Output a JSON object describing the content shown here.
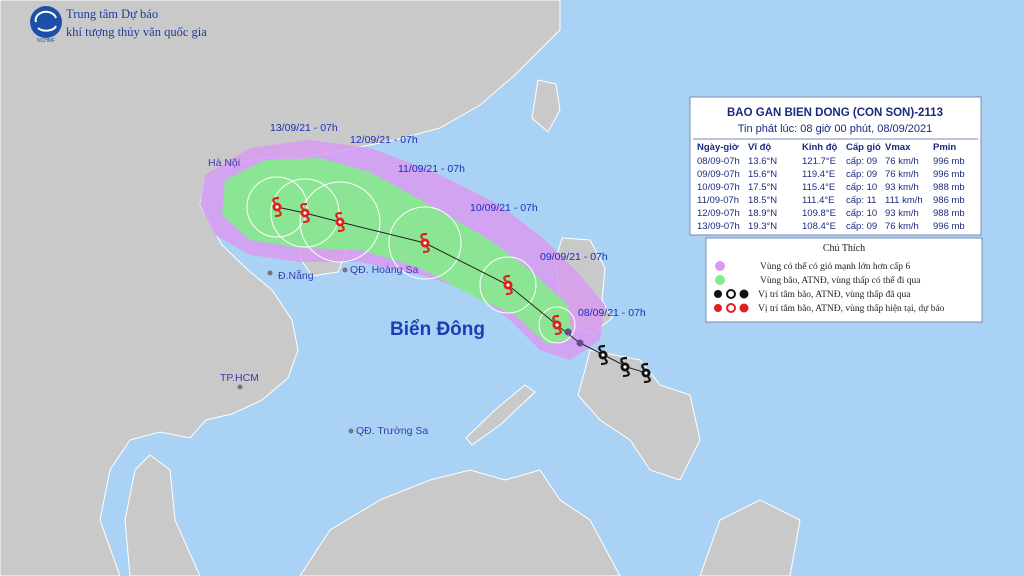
{
  "header": {
    "org_line1": "Trung tâm Dự báo",
    "org_line2": "khí tượng thủy văn quốc gia",
    "logo_text": "NCHMF"
  },
  "map_labels": {
    "track_times": [
      "13/09/21 - 07h",
      "12/09/21 - 07h",
      "11/09/21 - 07h",
      "10/09/21 - 07h",
      "09/09/21 - 07h",
      "08/09/21 - 07h"
    ],
    "places": [
      "Hà Nội",
      "Đ.Nẵng",
      "QĐ. Hoàng Sa",
      "Biển Đông",
      "TP.HCM",
      "QĐ. Trường Sa"
    ]
  },
  "bulletin": {
    "title": "BAO GAN BIEN DONG (CON SON)-2113",
    "issued": "Tin phát lúc: 08 giờ 00 phút, 08/09/2021",
    "columns": [
      "Ngày-giờ",
      "Vĩ độ",
      "Kinh độ",
      "Cấp gió",
      "Vmax",
      "Pmin"
    ],
    "rows": [
      [
        "08/09-07h",
        "13.6°N",
        "121.7°E",
        "cấp: 09",
        "76 km/h",
        "996 mb"
      ],
      [
        "09/09-07h",
        "15.6°N",
        "119.4°E",
        "cấp: 09",
        "76 km/h",
        "996 mb"
      ],
      [
        "10/09-07h",
        "17.5°N",
        "115.4°E",
        "cấp: 10",
        "93 km/h",
        "988 mb"
      ],
      [
        "11/09-07h",
        "18.5°N",
        "111.4°E",
        "cấp: 11",
        "111 km/h",
        "986 mb"
      ],
      [
        "12/09-07h",
        "18.9°N",
        "109.8°E",
        "cấp: 10",
        "93 km/h",
        "988 mb"
      ],
      [
        "13/09-07h",
        "19.3°N",
        "108.4°E",
        "cấp: 09",
        "76 km/h",
        "996 mb"
      ]
    ]
  },
  "legend": {
    "title": "Chú Thích",
    "items": [
      "Vùng có thể có gió mạnh lớn hơn cấp 6",
      "Vùng bão, ATNĐ, vùng thấp có thể đi qua",
      "Vị trí tâm bão, ATNĐ, vùng thấp đã qua",
      "Vị trí tâm bão, ATNĐ, vùng thấp hiện tại, dự báo"
    ]
  }
}
